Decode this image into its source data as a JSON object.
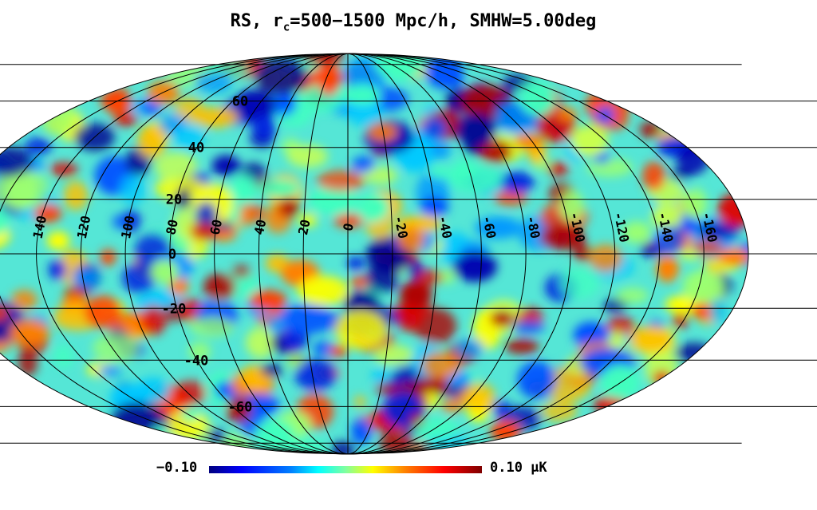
{
  "title": {
    "prefix": "RS, r",
    "subscript": "c",
    "suffix": "=500−1500 Mpc/h, SMHW=5.00deg"
  },
  "map": {
    "projection": "mollweide",
    "longitude_labels": [
      "140",
      "120",
      "100",
      "80",
      "60",
      "40",
      "20",
      "0",
      "-20",
      "-40",
      "-60",
      "-80",
      "-100",
      "-120",
      "-140",
      "-160"
    ],
    "latitude_labels": [
      "60",
      "40",
      "20",
      "0",
      "-20",
      "-40",
      "-60"
    ]
  },
  "colorbar": {
    "min_label": "−0.10",
    "max_label": "0.10 μK",
    "min": -0.1,
    "max": 0.1,
    "unit": "μK",
    "colors": [
      "#00007f",
      "#0000ff",
      "#0080ff",
      "#00ffff",
      "#80ffa0",
      "#ffff00",
      "#ff8000",
      "#ff0000",
      "#7f0000"
    ]
  }
}
